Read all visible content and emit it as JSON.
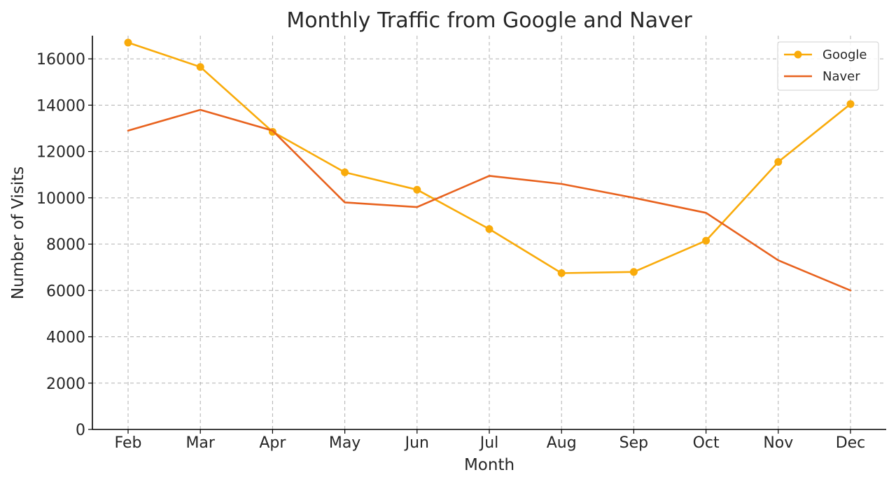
{
  "chart_data": {
    "type": "line",
    "title": "Monthly Traffic from Google and Naver",
    "xlabel": "Month",
    "ylabel": "Number of Visits",
    "categories": [
      "Feb",
      "Mar",
      "Apr",
      "May",
      "Jun",
      "Jul",
      "Aug",
      "Sep",
      "Oct",
      "Nov",
      "Dec"
    ],
    "ylim": [
      0,
      17000
    ],
    "yticks": [
      0,
      2000,
      4000,
      6000,
      8000,
      10000,
      12000,
      14000,
      16000
    ],
    "grid": true,
    "legend_position": "top-right",
    "series": [
      {
        "name": "Google",
        "color": "#f9ab0b",
        "marker": "circle",
        "values": [
          16700,
          15650,
          12850,
          11100,
          10350,
          8650,
          6750,
          6800,
          8150,
          11550,
          14050
        ]
      },
      {
        "name": "Naver",
        "color": "#e8621e",
        "marker": "none",
        "values": [
          12900,
          13800,
          12900,
          9800,
          9600,
          10950,
          10600,
          10000,
          9350,
          7300,
          6000
        ]
      }
    ]
  }
}
